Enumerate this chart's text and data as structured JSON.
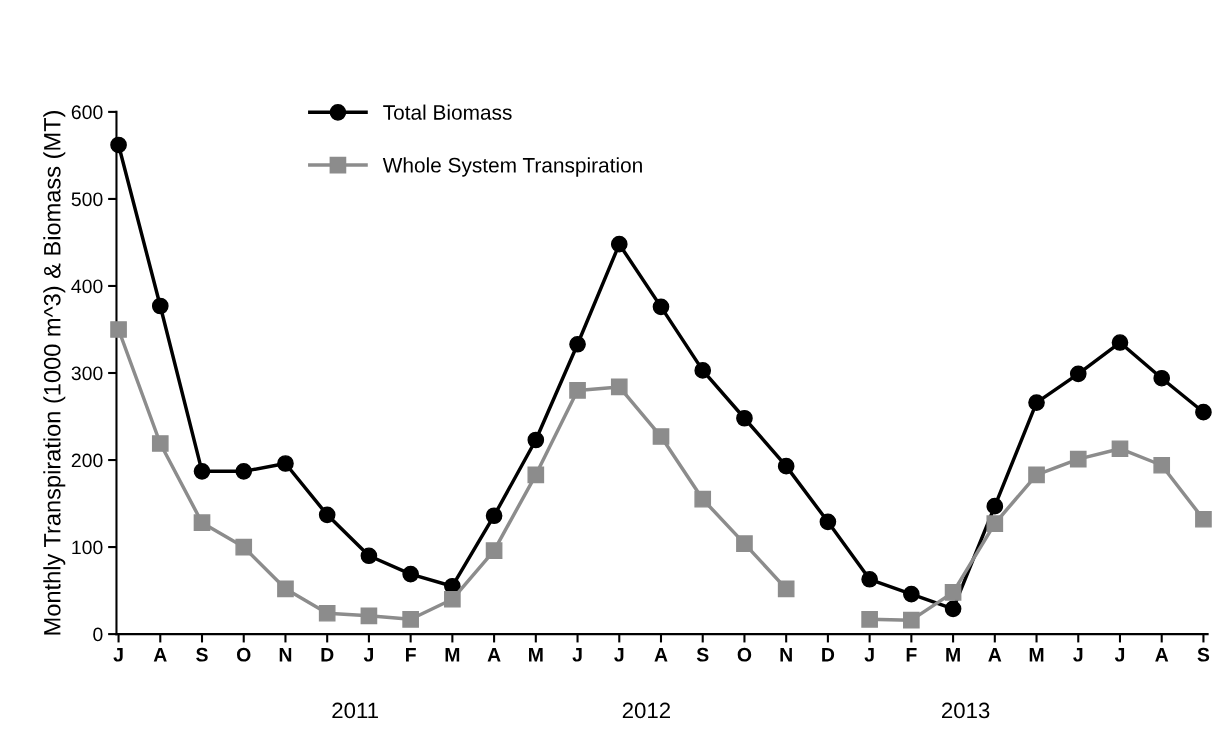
{
  "chart_data": {
    "type": "line",
    "ylabel": "Monthly Transpiration (1000 m^3) & Biomass (MT)",
    "categories": [
      "J",
      "A",
      "S",
      "O",
      "N",
      "D",
      "J",
      "F",
      "M",
      "A",
      "M",
      "J",
      "J",
      "A",
      "S",
      "O",
      "N",
      "D",
      "J",
      "F",
      "M",
      "A",
      "M",
      "J",
      "J",
      "A",
      "S"
    ],
    "series": [
      {
        "name": "Total Biomass",
        "color": "#000000",
        "marker": "circle",
        "values": [
          562,
          377,
          187,
          187,
          196,
          137,
          90,
          69,
          55,
          136,
          223,
          333,
          448,
          376,
          303,
          248,
          193,
          129,
          63,
          46,
          29,
          147,
          266,
          299,
          335,
          294,
          255
        ]
      },
      {
        "name": "Whole System Transpiration",
        "color": "#8c8c8c",
        "marker": "square",
        "values": [
          350,
          219,
          128,
          100,
          52,
          24,
          21,
          17,
          40,
          96,
          183,
          280,
          284,
          227,
          155,
          104,
          52,
          null,
          17,
          16,
          48,
          127,
          183,
          201,
          213,
          194,
          132
        ]
      }
    ],
    "ylim": [
      0,
      600
    ],
    "yticks": [
      0,
      100,
      200,
      300,
      400,
      500,
      600
    ],
    "annotations": [
      "2011",
      "2012",
      "2013"
    ],
    "legend": "top left",
    "grid": false,
    "line_style": "solid"
  }
}
